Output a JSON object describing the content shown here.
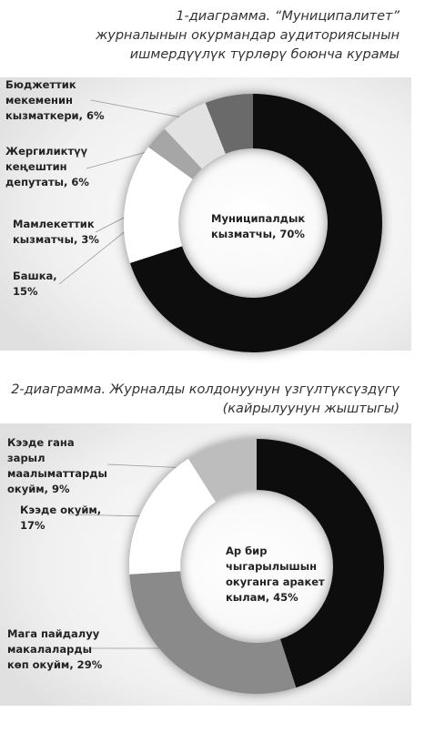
{
  "chart_data": [
    {
      "type": "donut",
      "title": "1-диаграмма. “Муниципалитет”\nжурналынын окурмандар аудиториясынын\nишмердүүлүк түрлөрү боюнча курамы",
      "categories": [
        "Муниципалдык\nкызматчы, 70%",
        "Башка,\n15%",
        "Мамлекеттик\nкызматчы, 3%",
        "Жергиликтүү\nкеңештин\nдепутаты, 6%",
        "Бюджеттик\nмекеменин\nкызматкери, 6%"
      ],
      "values": [
        70,
        15,
        3,
        6,
        6
      ],
      "colors": [
        "#111111",
        "#ffffff",
        "#a6a6a6",
        "#e2e2e2",
        "#6a6a6a"
      ]
    },
    {
      "type": "donut",
      "title": "2-диаграмма. Журналды колдонуунун үзгүлтүксүздүгү\n(кайрылуунун жыштыгы)",
      "categories": [
        "Ар бир\nчыгарылышын\nокуганга аракет\nкылам, 45%",
        "Мага пайдалуу\nмакалаларды\nкөп окуйм, 29%",
        "Кээде окуйм,\n17%",
        "Кээде гана\nзарыл\nмаалыматтарды\nокуйм, 9%"
      ],
      "values": [
        45,
        29,
        17,
        9
      ],
      "colors": [
        "#111111",
        "#8a8a8a",
        "#ffffff",
        "#bdbdbd"
      ]
    }
  ]
}
